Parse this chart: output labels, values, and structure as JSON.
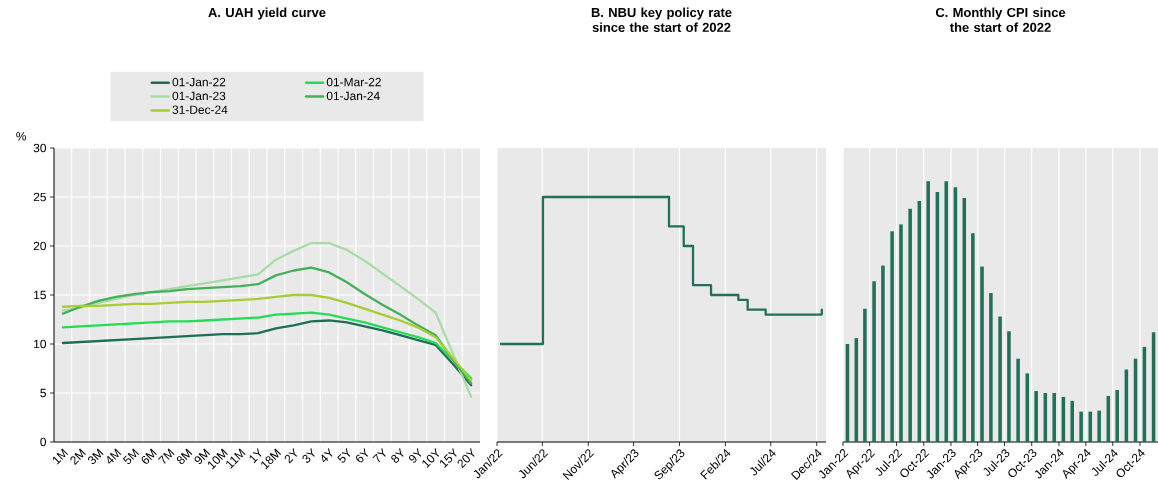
{
  "chart_data": [
    {
      "type": "line",
      "title": "A. UAH yield curve",
      "ylabel": "%",
      "categories": [
        "1M",
        "2M",
        "3M",
        "4M",
        "5M",
        "6M",
        "7M",
        "8M",
        "9M",
        "10M",
        "11M",
        "1Y",
        "18M",
        "2Y",
        "3Y",
        "4Y",
        "5Y",
        "6Y",
        "7Y",
        "8Y",
        "9Y",
        "10Y",
        "15Y",
        "20Y"
      ],
      "series": [
        {
          "name": "01-Jan-22",
          "color": "#1f6e57",
          "values": [
            10.1,
            10.2,
            10.3,
            10.4,
            10.5,
            10.6,
            10.7,
            10.8,
            10.9,
            11.0,
            11.0,
            11.1,
            11.6,
            11.9,
            12.3,
            12.4,
            12.2,
            11.8,
            11.4,
            10.9,
            10.4,
            9.9,
            7.9,
            5.8
          ]
        },
        {
          "name": "01-Mar-22",
          "color": "#22dd55",
          "values": [
            11.7,
            11.8,
            11.9,
            12.0,
            12.1,
            12.2,
            12.3,
            12.3,
            12.4,
            12.5,
            12.6,
            12.7,
            13.0,
            13.1,
            13.2,
            13.0,
            12.6,
            12.2,
            11.7,
            11.2,
            10.7,
            10.1,
            8.3,
            6.5
          ]
        },
        {
          "name": "01-Jan-23",
          "color": "#a8dba8",
          "values": [
            13.4,
            13.7,
            14.2,
            14.6,
            15.0,
            15.3,
            15.6,
            15.9,
            16.2,
            16.5,
            16.8,
            17.1,
            18.6,
            19.5,
            20.3,
            20.3,
            19.6,
            18.5,
            17.2,
            15.9,
            14.6,
            13.2,
            8.9,
            4.6
          ]
        },
        {
          "name": "01-Jan-24",
          "color": "#44b05a",
          "values": [
            13.1,
            13.8,
            14.4,
            14.8,
            15.1,
            15.3,
            15.4,
            15.6,
            15.7,
            15.8,
            15.9,
            16.1,
            17.0,
            17.5,
            17.8,
            17.3,
            16.3,
            15.1,
            14.0,
            13.0,
            11.9,
            10.9,
            8.3,
            6.0
          ]
        },
        {
          "name": "31-Dec-24",
          "color": "#a8cc33",
          "values": [
            13.8,
            13.9,
            13.9,
            14.0,
            14.1,
            14.1,
            14.2,
            14.3,
            14.3,
            14.4,
            14.5,
            14.6,
            14.8,
            15.0,
            15.0,
            14.7,
            14.2,
            13.6,
            13.0,
            12.4,
            11.7,
            10.7,
            8.5,
            6.3
          ]
        }
      ],
      "ylim": [
        0,
        30
      ],
      "yticks": [
        0,
        5,
        10,
        15,
        20,
        25,
        30
      ],
      "grid": true,
      "legend": "top"
    },
    {
      "type": "step",
      "title": "B. NBU key policy rate since the start of 2022",
      "x": [
        "2022-01-14",
        "2022-06-03",
        "2023-07-28",
        "2023-09-15",
        "2023-10-16",
        "2023-12-15",
        "2024-03-15",
        "2024-04-15",
        "2024-06-14",
        "2024-12-18"
      ],
      "series": [
        {
          "color": "#217059",
          "values": [
            10,
            25,
            22,
            20,
            16,
            15,
            14.5,
            13.5,
            13,
            13.5
          ]
        }
      ],
      "xlim": [
        "2022-01-01",
        "2025-01-01"
      ],
      "xticks": [
        {
          "value": "2022-01-01",
          "label": "Jan/22"
        },
        {
          "value": "2022-06-01",
          "label": "Jun/22"
        },
        {
          "value": "2022-11-01",
          "label": "Nov/22"
        },
        {
          "value": "2023-04-01",
          "label": "Apr/23"
        },
        {
          "value": "2023-09-01",
          "label": "Sep/23"
        },
        {
          "value": "2024-02-01",
          "label": "Feb/24"
        },
        {
          "value": "2024-07-01",
          "label": "Jul/24"
        },
        {
          "value": "2024-12-01",
          "label": "Dec/24"
        }
      ],
      "ylim": [
        0,
        30
      ],
      "yticks": [
        0,
        5,
        10,
        15,
        20,
        25,
        30
      ],
      "grid": "x",
      "tick_labels": "x"
    },
    {
      "type": "bar",
      "title": "C. Monthly CPI since the start of 2022",
      "x": [
        "2022-01-16",
        "2022-02-15",
        "2022-03-16",
        "2022-04-16",
        "2022-05-16",
        "2022-06-16",
        "2022-07-16",
        "2022-08-16",
        "2022-09-16",
        "2022-10-16",
        "2022-11-16",
        "2022-12-16",
        "2023-01-16",
        "2023-02-15",
        "2023-03-16",
        "2023-04-16",
        "2023-05-16",
        "2023-06-16",
        "2023-07-16",
        "2023-08-16",
        "2023-09-16",
        "2023-10-16",
        "2023-11-16",
        "2023-12-16",
        "2024-01-16",
        "2024-02-15",
        "2024-03-16",
        "2024-04-16",
        "2024-05-16",
        "2024-06-16",
        "2024-07-16",
        "2024-08-16",
        "2024-09-16",
        "2024-10-16",
        "2024-11-16"
      ],
      "series": [
        {
          "color": "#217059",
          "values": [
            10.0,
            10.6,
            13.6,
            16.4,
            18.0,
            21.5,
            22.2,
            23.8,
            24.6,
            26.6,
            25.5,
            26.6,
            26.0,
            24.9,
            21.3,
            17.9,
            15.2,
            12.8,
            11.3,
            8.5,
            7.0,
            5.2,
            5.0,
            5.0,
            4.6,
            4.2,
            3.1,
            3.1,
            3.2,
            4.7,
            5.3,
            7.4,
            8.5,
            9.7,
            11.2
          ]
        }
      ],
      "xlim": [
        "2022-01",
        "2024-12"
      ],
      "xticks": [
        {
          "value": "2022-01",
          "label": "Jan-22"
        },
        {
          "value": "2022-04",
          "label": "Apr-22"
        },
        {
          "value": "2022-07",
          "label": "Jul-22"
        },
        {
          "value": "2022-10",
          "label": "Oct-22"
        },
        {
          "value": "2023-01",
          "label": "Jan-23"
        },
        {
          "value": "2023-04",
          "label": "Apr-23"
        },
        {
          "value": "2023-07",
          "label": "Jul-23"
        },
        {
          "value": "2023-10",
          "label": "Oct-23"
        },
        {
          "value": "2024-01",
          "label": "Jan-24"
        },
        {
          "value": "2024-04",
          "label": "Apr-24"
        },
        {
          "value": "2024-07",
          "label": "Jul-24"
        },
        {
          "value": "2024-10",
          "label": "Oct-24"
        }
      ],
      "ylim": [
        0,
        30
      ],
      "yticks": [
        0,
        5,
        10,
        15,
        20,
        25,
        30
      ],
      "grid": "x",
      "tick_labels": "x"
    }
  ]
}
